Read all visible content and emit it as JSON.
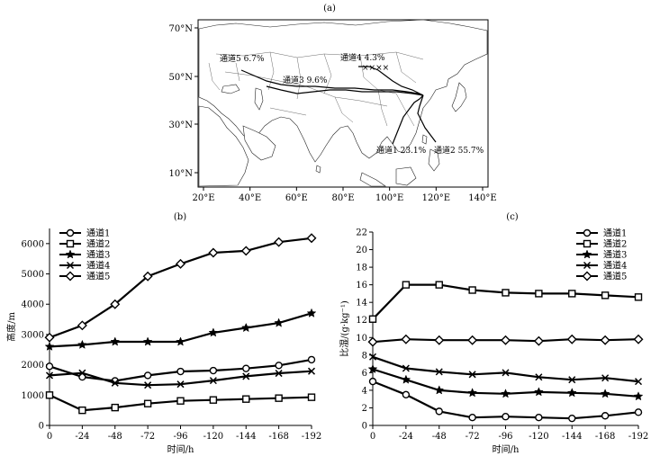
{
  "panels": {
    "a": {
      "label": "(a)"
    },
    "b": {
      "label": "(b)"
    },
    "c": {
      "label": "(c)"
    }
  },
  "map": {
    "lon_ticks": [
      "20°E",
      "40°E",
      "60°E",
      "80°E",
      "100°E",
      "120°E",
      "140°E"
    ],
    "lat_ticks": [
      "70°N",
      "50°N",
      "30°N",
      "10°N"
    ],
    "labels": [
      {
        "text": "通道5  6.7%"
      },
      {
        "text": "通道4  4.3%"
      },
      {
        "text": "通道3  9.6%"
      },
      {
        "text": "通道1  23.1%"
      },
      {
        "text": "通道2  55.7%"
      }
    ]
  },
  "chart_data": [
    {
      "type": "line",
      "panel": "(b)",
      "xlabel": "时间/h",
      "ylabel": "高度/m",
      "x": [
        0,
        -24,
        -48,
        -72,
        -96,
        -120,
        -144,
        -168,
        -192
      ],
      "x_tick_labels": [
        "0",
        "-24",
        "-48",
        "-72",
        "-96",
        "-120",
        "-144",
        "-168",
        "-192"
      ],
      "y_tick_labels": [
        "0",
        "1000",
        "2000",
        "3000",
        "4000",
        "5000",
        "6000"
      ],
      "ylim": [
        0,
        6500
      ],
      "legend_position": "top-left",
      "series": [
        {
          "name": "通道1",
          "marker": "circle",
          "values": [
            1950,
            1600,
            1470,
            1650,
            1780,
            1810,
            1880,
            1980,
            2170
          ]
        },
        {
          "name": "通道2",
          "marker": "square",
          "values": [
            1000,
            500,
            590,
            720,
            810,
            840,
            870,
            900,
            930
          ]
        },
        {
          "name": "通道3",
          "marker": "star",
          "values": [
            2600,
            2660,
            2760,
            2760,
            2760,
            3060,
            3220,
            3380,
            3700
          ]
        },
        {
          "name": "通道4",
          "marker": "x",
          "values": [
            1650,
            1730,
            1400,
            1330,
            1360,
            1480,
            1620,
            1720,
            1790
          ]
        },
        {
          "name": "通道5",
          "marker": "diamond",
          "values": [
            2900,
            3300,
            4000,
            4920,
            5330,
            5700,
            5760,
            6050,
            6180
          ]
        }
      ]
    },
    {
      "type": "line",
      "panel": "(c)",
      "xlabel": "时间/h",
      "ylabel": "比湿/(g·kg⁻¹)",
      "x": [
        0,
        -24,
        -48,
        -72,
        -96,
        -120,
        -144,
        -168,
        -192
      ],
      "x_tick_labels": [
        "0",
        "-24",
        "-48",
        "-72",
        "-96",
        "-120",
        "-144",
        "-168",
        "-192"
      ],
      "y_tick_labels": [
        "0",
        "2",
        "4",
        "6",
        "8",
        "10",
        "12",
        "14",
        "16",
        "18",
        "20",
        "22"
      ],
      "ylim": [
        0,
        22
      ],
      "legend_position": "top-right",
      "series": [
        {
          "name": "通道1",
          "marker": "circle",
          "values": [
            5.0,
            3.5,
            1.6,
            0.9,
            1.0,
            0.9,
            0.8,
            1.1,
            1.5
          ]
        },
        {
          "name": "通道2",
          "marker": "square",
          "values": [
            12.1,
            16.0,
            16.0,
            15.4,
            15.1,
            15.0,
            15.0,
            14.8,
            14.6
          ]
        },
        {
          "name": "通道3",
          "marker": "star",
          "values": [
            6.4,
            5.2,
            4.0,
            3.7,
            3.6,
            3.8,
            3.7,
            3.6,
            3.3
          ]
        },
        {
          "name": "通道4",
          "marker": "x",
          "values": [
            7.8,
            6.5,
            6.1,
            5.8,
            6.0,
            5.5,
            5.2,
            5.4,
            5.0
          ]
        },
        {
          "name": "通道5",
          "marker": "diamond",
          "values": [
            9.5,
            9.8,
            9.7,
            9.7,
            9.7,
            9.6,
            9.8,
            9.7,
            9.8
          ]
        }
      ]
    }
  ]
}
